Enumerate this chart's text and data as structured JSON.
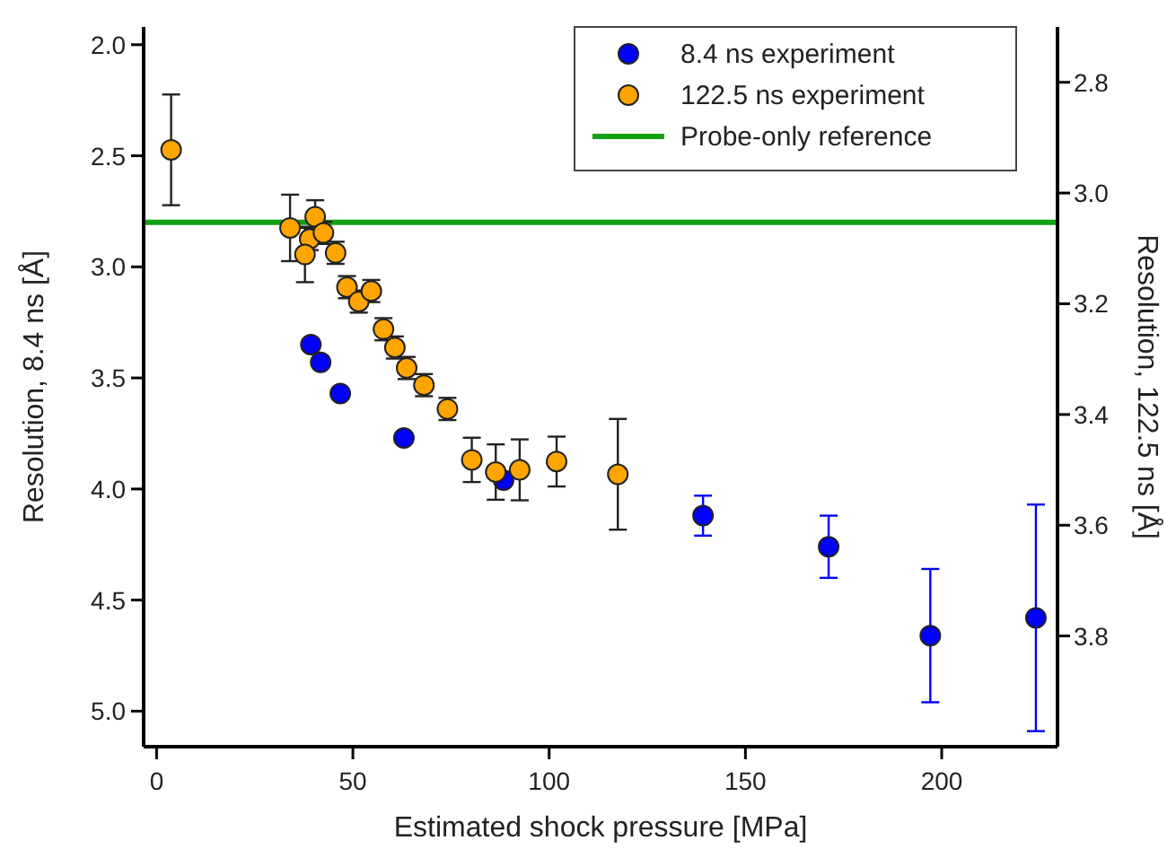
{
  "chart_data": {
    "type": "scatter",
    "xlabel": "Estimated shock pressure [MPa]",
    "ylabel": "Resolution, 8.4 ns [Å]",
    "y2label": "Resolution, 122.5 ns [Å]",
    "xlim": [
      -3.3,
      229.5
    ],
    "xticks": [
      0,
      50,
      100,
      150,
      200
    ],
    "ylim": [
      5.16,
      1.92
    ],
    "yticks": [
      {
        "value": 2.0,
        "label": "2.0"
      },
      2.5,
      {
        "value": 3.0,
        "label": "3.0"
      },
      3.5,
      {
        "value": 4.0,
        "label": "4.0"
      },
      4.5,
      {
        "value": 5.0,
        "label": "5.0"
      }
    ],
    "y2lim": [
      4.0,
      2.7
    ],
    "y2ticks": [
      2.8,
      {
        "value": 3.0,
        "label": "3.0"
      },
      3.2,
      3.4,
      3.6,
      3.8
    ],
    "marker": "circle",
    "legend": "top right",
    "grid": false,
    "series": [
      {
        "name": "8.4 ns experiment",
        "color": "#0000ff",
        "x": [
          39.3,
          41.8,
          46.8,
          63.0,
          88.4,
          139.2,
          171.2,
          197.1,
          224.0
        ],
        "values": [
          3.35,
          3.43,
          3.57,
          3.77,
          3.96,
          4.12,
          4.26,
          4.66,
          4.58
        ],
        "errors": [
          null,
          null,
          null,
          null,
          0.02,
          0.09,
          0.14,
          0.3,
          0.51
        ]
      },
      {
        "name": "122.5 ns experiment",
        "color": "#ffa500",
        "axis": "y2",
        "x": [
          3.7,
          34.0,
          40.4,
          39.0,
          37.8,
          42.5,
          45.6,
          48.5,
          51.5,
          54.7,
          57.8,
          60.7,
          63.7,
          68.1,
          74.1,
          80.3,
          86.4,
          92.5,
          101.9,
          117.5
        ],
        "values": [
          2.922,
          3.063,
          3.043,
          3.083,
          3.111,
          3.072,
          3.108,
          3.17,
          3.196,
          3.177,
          3.246,
          3.279,
          3.316,
          3.347,
          3.39,
          3.482,
          3.504,
          3.5,
          3.485,
          3.508
        ],
        "errors": [
          0.1,
          0.06,
          0.03,
          0.02,
          0.05,
          0.02,
          0.02,
          0.02,
          0.02,
          0.02,
          0.02,
          0.02,
          0.02,
          0.02,
          0.02,
          0.04,
          0.05,
          0.055,
          0.045,
          0.1
        ]
      }
    ],
    "ref_lines": [
      {
        "axis": "y",
        "value": 2.8,
        "label": "Probe-only reference",
        "color": "#14a014"
      }
    ]
  }
}
